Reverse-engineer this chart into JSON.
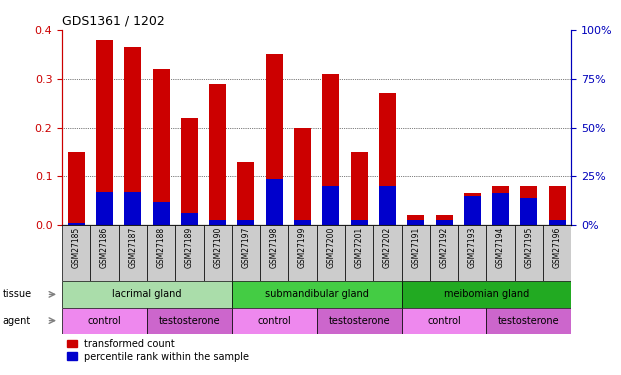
{
  "title": "GDS1361 / 1202",
  "samples": [
    "GSM27185",
    "GSM27186",
    "GSM27187",
    "GSM27188",
    "GSM27189",
    "GSM27190",
    "GSM27197",
    "GSM27198",
    "GSM27199",
    "GSM27200",
    "GSM27201",
    "GSM27202",
    "GSM27191",
    "GSM27192",
    "GSM27193",
    "GSM27194",
    "GSM27195",
    "GSM27196"
  ],
  "red_values": [
    0.15,
    0.38,
    0.365,
    0.32,
    0.22,
    0.29,
    0.13,
    0.35,
    0.2,
    0.31,
    0.15,
    0.27,
    0.02,
    0.02,
    0.065,
    0.08,
    0.08,
    0.08
  ],
  "blue_values": [
    0.005,
    0.068,
    0.068,
    0.048,
    0.025,
    0.01,
    0.01,
    0.095,
    0.01,
    0.08,
    0.01,
    0.08,
    0.01,
    0.01,
    0.06,
    0.065,
    0.055,
    0.01
  ],
  "tissue_groups": [
    {
      "label": "lacrimal gland",
      "start": 0,
      "end": 6,
      "color": "#aaddaa"
    },
    {
      "label": "submandibular gland",
      "start": 6,
      "end": 12,
      "color": "#44cc44"
    },
    {
      "label": "meibomian gland",
      "start": 12,
      "end": 18,
      "color": "#22aa22"
    }
  ],
  "agent_groups": [
    {
      "label": "control",
      "start": 0,
      "end": 3,
      "color": "#ee88ee"
    },
    {
      "label": "testosterone",
      "start": 3,
      "end": 6,
      "color": "#cc66cc"
    },
    {
      "label": "control",
      "start": 6,
      "end": 9,
      "color": "#ee88ee"
    },
    {
      "label": "testosterone",
      "start": 9,
      "end": 12,
      "color": "#cc66cc"
    },
    {
      "label": "control",
      "start": 12,
      "end": 15,
      "color": "#ee88ee"
    },
    {
      "label": "testosterone",
      "start": 15,
      "end": 18,
      "color": "#cc66cc"
    }
  ],
  "ylim_left": [
    0,
    0.4
  ],
  "ylim_right": [
    0,
    100
  ],
  "yticks_left": [
    0,
    0.1,
    0.2,
    0.3,
    0.4
  ],
  "yticks_right": [
    0,
    25,
    50,
    75,
    100
  ],
  "bar_color_red": "#CC0000",
  "bar_color_blue": "#0000CC",
  "bar_width": 0.6,
  "tick_bg": "#CCCCCC",
  "left_axis_color": "#CC0000",
  "right_axis_color": "#0000BB"
}
